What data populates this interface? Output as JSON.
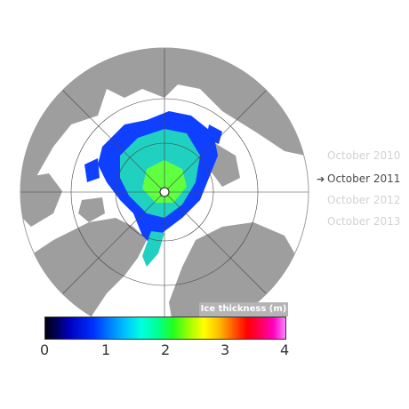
{
  "years": [
    {
      "label": "October 2010",
      "active": false
    },
    {
      "label": "October 2011",
      "active": true
    },
    {
      "label": "October 2012",
      "active": false
    },
    {
      "label": "October 2013",
      "active": false
    }
  ],
  "active_arrow": "➔",
  "legend": {
    "title": "Ice thickness (m)",
    "ticks": [
      "0",
      "1",
      "2",
      "3",
      "4"
    ],
    "range_m": [
      0,
      4
    ]
  },
  "colors": {
    "land": "#9e9e9e",
    "ocean": "#ffffff",
    "ice_thin": "#1040ff",
    "ice_mid": "#20d0c0",
    "ice_thick": "#60ff40",
    "grid": "#444444"
  }
}
